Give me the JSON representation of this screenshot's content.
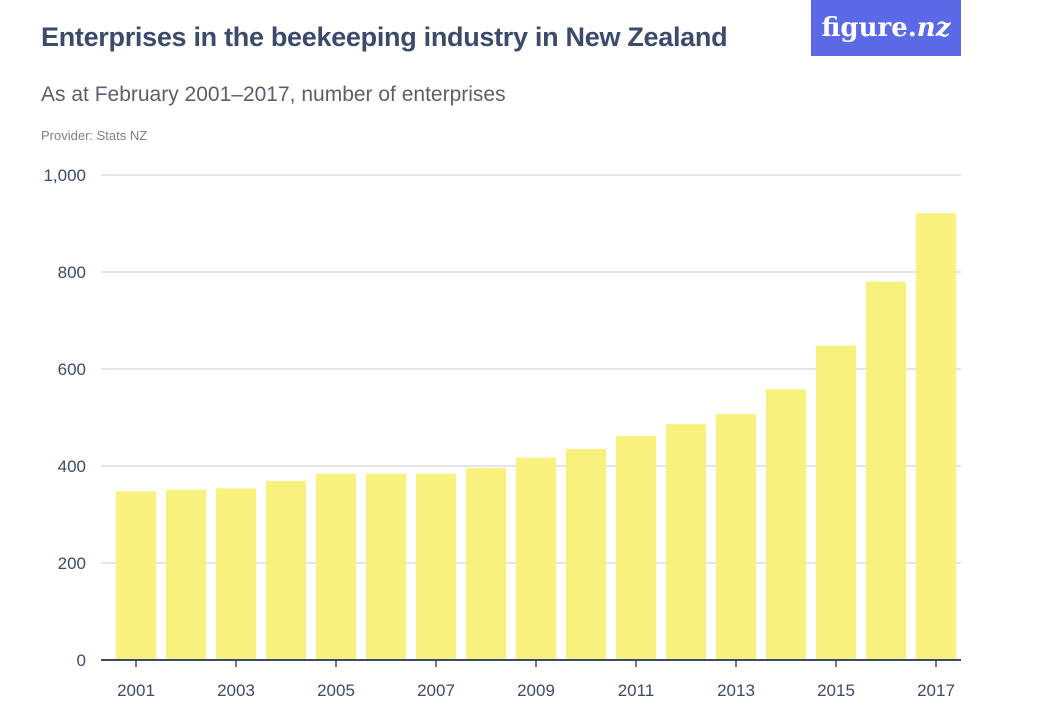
{
  "header": {
    "title": "Enterprises in the beekeeping industry in New Zealand",
    "subtitle": "As at February 2001–2017, number of enterprises",
    "provider": "Provider: Stats NZ",
    "logo_text_main": "figure.",
    "logo_text_italic": "nz"
  },
  "colors": {
    "bar": "#f8f17e",
    "grid": "#d9dbe3",
    "axis": "#3c4a6b",
    "text": "#3c4a6b",
    "logo_bg": "#5b69e6"
  },
  "chart_data": {
    "type": "bar",
    "title": "Enterprises in the beekeeping industry in New Zealand",
    "subtitle": "As at February 2001–2017, number of enterprises",
    "categories": [
      "2001",
      "2002",
      "2003",
      "2004",
      "2005",
      "2006",
      "2007",
      "2008",
      "2009",
      "2010",
      "2011",
      "2012",
      "2013",
      "2014",
      "2015",
      "2016",
      "2017"
    ],
    "values": [
      348,
      351,
      354,
      369,
      384,
      384,
      384,
      396,
      417,
      435,
      462,
      486,
      507,
      558,
      648,
      780,
      921
    ],
    "x_tick_labels": [
      "2001",
      "2003",
      "2005",
      "2007",
      "2009",
      "2011",
      "2013",
      "2015",
      "2017"
    ],
    "y_ticks": [
      0,
      200,
      400,
      600,
      800,
      1000
    ],
    "y_tick_labels": [
      "0",
      "200",
      "400",
      "600",
      "800",
      "1,000"
    ],
    "ylim": [
      0,
      1000
    ],
    "xlabel": "",
    "ylabel": "",
    "grid": true,
    "legend": "none"
  }
}
